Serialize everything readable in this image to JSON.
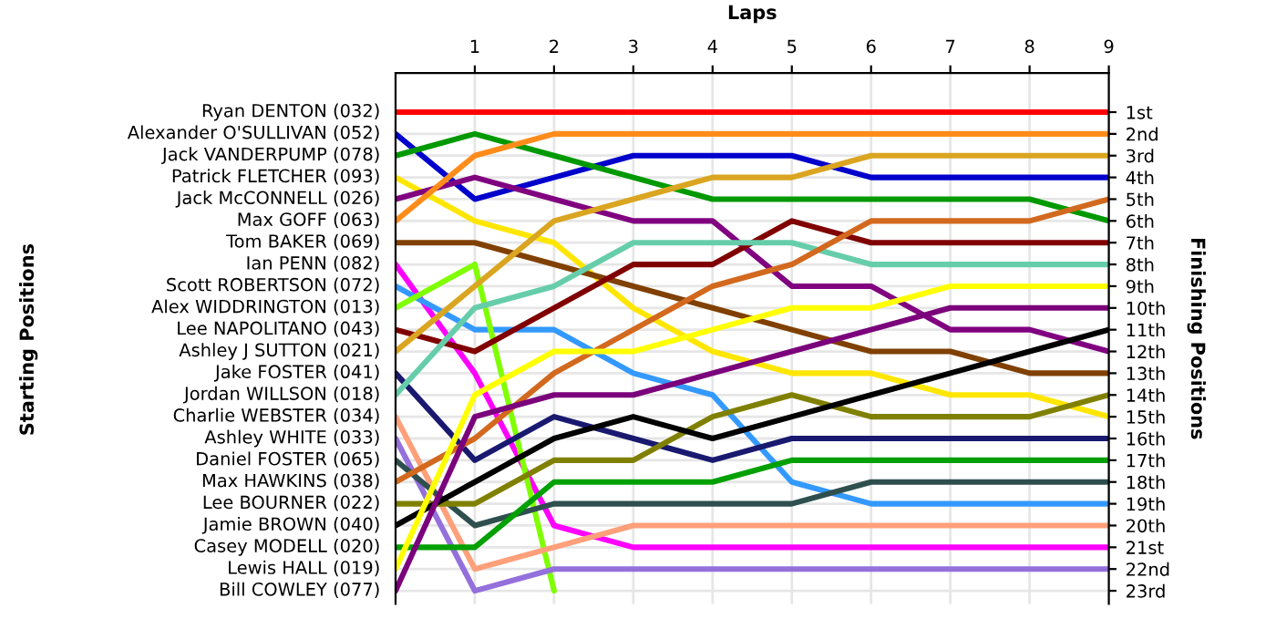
{
  "chart_data": {
    "type": "line",
    "xlabel": "Laps",
    "ylabel": "Finishing Positions",
    "x": [
      0,
      1,
      2,
      3,
      4,
      5,
      6,
      7,
      8,
      9
    ],
    "xlim": [
      0,
      9
    ],
    "xticks": [
      1,
      2,
      3,
      4,
      5,
      6,
      7,
      8,
      9
    ],
    "ylim": [
      23.6,
      -0.8
    ],
    "yticks": [
      {
        "value": 1,
        "label": "1st"
      },
      {
        "value": 2,
        "label": "2nd"
      },
      {
        "value": 3,
        "label": "3rd"
      },
      {
        "value": 4,
        "label": "4th"
      },
      {
        "value": 5,
        "label": "5th"
      },
      {
        "value": 6,
        "label": "6th"
      },
      {
        "value": 7,
        "label": "7th"
      },
      {
        "value": 8,
        "label": "8th"
      },
      {
        "value": 9,
        "label": "9th"
      },
      {
        "value": 10,
        "label": "10th"
      },
      {
        "value": 11,
        "label": "11th"
      },
      {
        "value": 12,
        "label": "12th"
      },
      {
        "value": 13,
        "label": "13th"
      },
      {
        "value": 14,
        "label": "14th"
      },
      {
        "value": 15,
        "label": "15th"
      },
      {
        "value": 16,
        "label": "16th"
      },
      {
        "value": 17,
        "label": "17th"
      },
      {
        "value": 18,
        "label": "18th"
      },
      {
        "value": 19,
        "label": "19th"
      },
      {
        "value": 20,
        "label": "20th"
      },
      {
        "value": 21,
        "label": "21st"
      },
      {
        "value": 22,
        "label": "22nd"
      },
      {
        "value": 23,
        "label": "23rd"
      }
    ],
    "annotations": [
      "Starting Positions"
    ],
    "grid": true,
    "legend": "left",
    "marker": "none",
    "line_style": "solid",
    "series": [
      {
        "name": "Ryan DENTON (032)",
        "color": "#ff0000",
        "values": [
          1,
          1,
          1,
          1,
          1,
          1,
          1,
          1,
          1,
          1
        ]
      },
      {
        "name": "Alexander O'SULLIVAN (052)",
        "color": "#0000cc",
        "values": [
          2,
          5,
          4,
          3,
          3,
          3,
          4,
          4,
          4,
          4
        ]
      },
      {
        "name": "Jack VANDERPUMP (078)",
        "color": "#009900",
        "values": [
          3,
          2,
          3,
          4,
          5,
          5,
          5,
          5,
          5,
          6
        ]
      },
      {
        "name": "Patrick FLETCHER (093)",
        "color": "#ffe600",
        "values": [
          4,
          6,
          7,
          10,
          12,
          13,
          13,
          14,
          14,
          15
        ]
      },
      {
        "name": "Jack McCONNELL (026)",
        "color": "#800080",
        "values": [
          5,
          4,
          5,
          6,
          6,
          9,
          9,
          11,
          11,
          12
        ]
      },
      {
        "name": "Max GOFF (063)",
        "color": "#ff8c1a",
        "values": [
          6,
          3,
          2,
          2,
          2,
          2,
          2,
          2,
          2,
          2
        ]
      },
      {
        "name": "Tom BAKER (069)",
        "color": "#804000",
        "values": [
          7,
          7,
          8,
          9,
          10,
          11,
          12,
          12,
          13,
          13
        ]
      },
      {
        "name": "Ian PENN (082)",
        "color": "#ff00ff",
        "values": [
          8,
          13,
          20,
          21,
          21,
          21,
          21,
          21,
          21,
          21
        ]
      },
      {
        "name": "Scott ROBERTSON (072)",
        "color": "#3399ff",
        "values": [
          9,
          11,
          11,
          13,
          14,
          18,
          19,
          19,
          19,
          19
        ]
      },
      {
        "name": "Alex WIDDRINGTON (013)",
        "color": "#80ff00",
        "values": [
          10,
          8,
          23,
          null,
          null,
          null,
          null,
          null,
          null,
          null
        ]
      },
      {
        "name": "Lee NAPOLITANO (043)",
        "color": "#800000",
        "values": [
          11,
          12,
          10,
          8,
          8,
          6,
          7,
          7,
          7,
          7
        ]
      },
      {
        "name": "Ashley J SUTTON (021)",
        "color": "#daa520",
        "values": [
          12,
          9,
          6,
          5,
          4,
          4,
          3,
          3,
          3,
          3
        ]
      },
      {
        "name": "Jake FOSTER (041)",
        "color": "#191970",
        "values": [
          13,
          17,
          15,
          16,
          17,
          16,
          16,
          16,
          16,
          16
        ]
      },
      {
        "name": "Jordan WILLSON (018)",
        "color": "#66cdaa",
        "values": [
          14,
          10,
          9,
          7,
          7,
          7,
          8,
          8,
          8,
          8
        ]
      },
      {
        "name": "Charlie WEBSTER (034)",
        "color": "#ffa07a",
        "values": [
          15,
          22,
          21,
          20,
          20,
          20,
          20,
          20,
          20,
          20
        ]
      },
      {
        "name": "Ashley WHITE (033)",
        "color": "#9370db",
        "values": [
          16,
          23,
          22,
          22,
          22,
          22,
          22,
          22,
          22,
          22
        ]
      },
      {
        "name": "Daniel FOSTER (065)",
        "color": "#2f4f4f",
        "values": [
          17,
          20,
          19,
          19,
          19,
          19,
          18,
          18,
          18,
          18
        ]
      },
      {
        "name": "Max HAWKINS (038)",
        "color": "#d2691e",
        "values": [
          18,
          16,
          13,
          11,
          9,
          8,
          6,
          6,
          6,
          5
        ]
      },
      {
        "name": "Lee BOURNER (022)",
        "color": "#808000",
        "values": [
          19,
          19,
          17,
          17,
          15,
          14,
          15,
          15,
          15,
          14
        ]
      },
      {
        "name": "Jamie BROWN (040)",
        "color": "#000000",
        "values": [
          20,
          18,
          16,
          15,
          16,
          15,
          14,
          13,
          12,
          11
        ]
      },
      {
        "name": "Casey MODELL (020)",
        "color": "#00a000",
        "values": [
          21,
          21,
          18,
          18,
          18,
          17,
          17,
          17,
          17,
          17
        ]
      },
      {
        "name": "Lewis HALL (019)",
        "color": "#ffff00",
        "values": [
          22,
          14,
          12,
          12,
          11,
          10,
          10,
          9,
          9,
          9
        ]
      },
      {
        "name": "Bill COWLEY (077)",
        "color": "#7b007b",
        "values": [
          23,
          15,
          14,
          14,
          13,
          12,
          11,
          10,
          10,
          10
        ]
      }
    ]
  }
}
